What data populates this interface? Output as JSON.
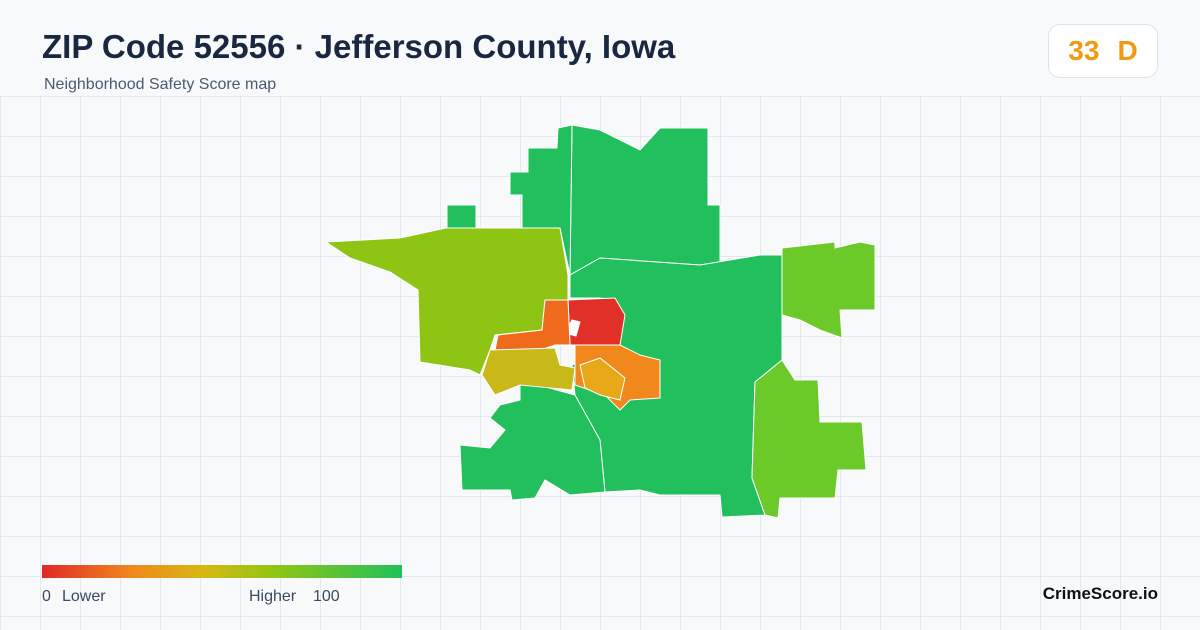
{
  "header": {
    "title": "ZIP Code 52556 · Jefferson County, Iowa",
    "subtitle": "Neighborhood Safety Score map",
    "score": 33,
    "grade": "D"
  },
  "legend": {
    "min": 0,
    "min_label": "Lower",
    "max_label": "Higher",
    "max": 100
  },
  "brand": "CrimeScore.io"
}
